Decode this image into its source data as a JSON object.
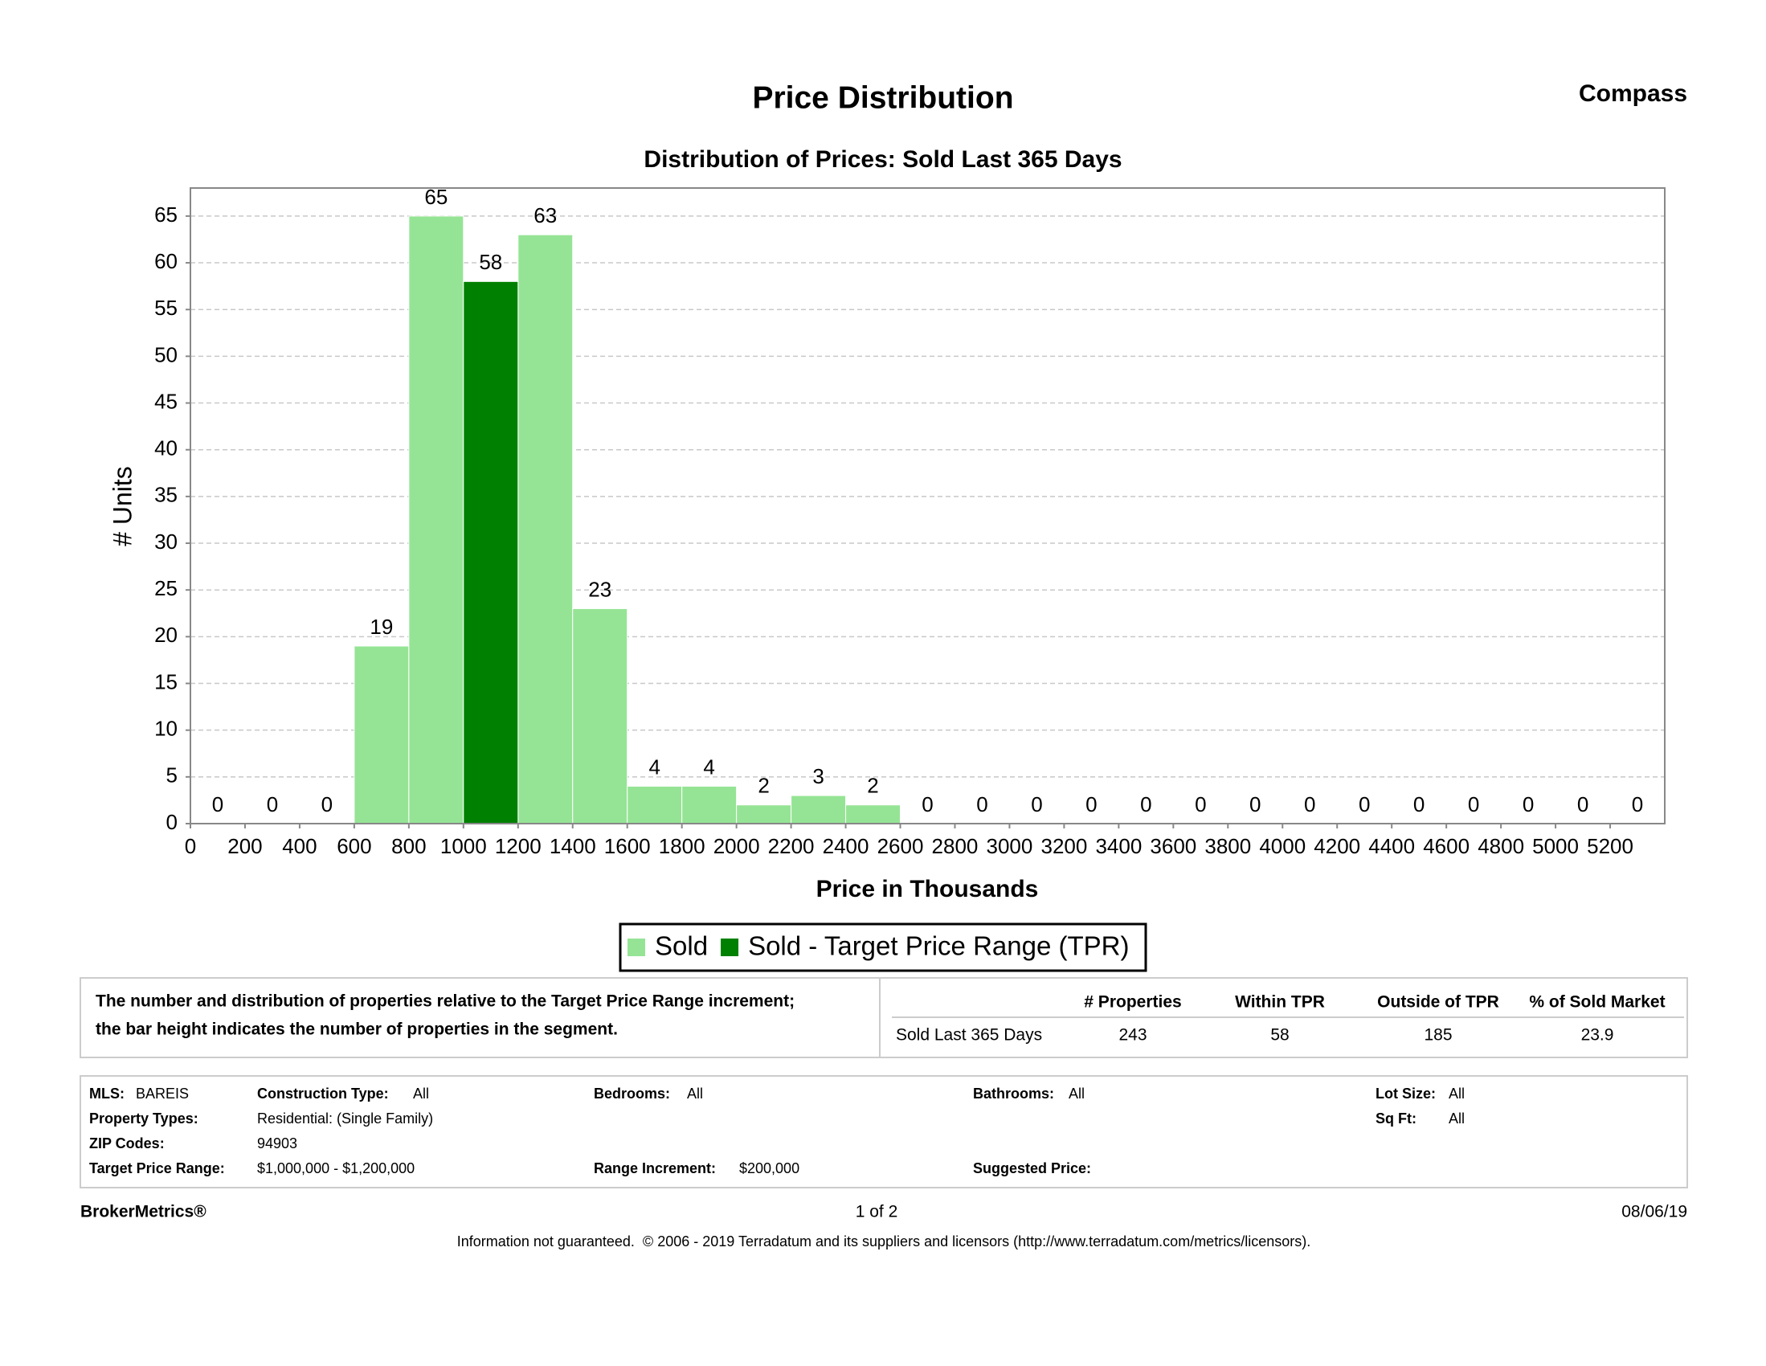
{
  "header": {
    "title": "Price Distribution",
    "brand": "Compass"
  },
  "chart_data": {
    "type": "histogram",
    "title": "Distribution of Prices: Sold Last 365 Days",
    "x_label": "Price in Thousands",
    "y_label": "# Units",
    "bins": [
      0,
      200,
      400,
      600,
      800,
      1000,
      1200,
      1400,
      1600,
      1800,
      2000,
      2200,
      2400,
      2600,
      2800,
      3000,
      3200,
      3400,
      3600,
      3800,
      4000,
      4200,
      4400,
      4600,
      4800,
      5000,
      5200,
      5400
    ],
    "series": [
      {
        "name": "Sold",
        "color": "#95e495",
        "values": [
          0,
          0,
          0,
          19,
          65,
          null,
          63,
          23,
          4,
          4,
          2,
          3,
          2,
          0,
          0,
          0,
          0,
          0,
          0,
          0,
          0,
          0,
          0,
          0,
          0,
          0,
          0
        ]
      },
      {
        "name": "Sold - Target Price Range (TPR)",
        "color": "#008000",
        "values": [
          null,
          null,
          null,
          null,
          null,
          58,
          null,
          null,
          null,
          null,
          null,
          null,
          null,
          null,
          null,
          null,
          null,
          null,
          null,
          null,
          null,
          null,
          null,
          null,
          null,
          null,
          null
        ]
      }
    ],
    "xlim": [
      0,
      5400
    ],
    "xticks": [
      0,
      200,
      400,
      600,
      800,
      1000,
      1200,
      1400,
      1600,
      1800,
      2000,
      2200,
      2400,
      2600,
      2800,
      3000,
      3200,
      3400,
      3600,
      3800,
      4000,
      4200,
      4400,
      4600,
      4800,
      5000,
      5200
    ],
    "ylim": [
      0,
      68
    ],
    "yticks": [
      0,
      5,
      10,
      15,
      20,
      25,
      30,
      35,
      40,
      45,
      50,
      55,
      60,
      65
    ],
    "grid": true,
    "legend": "bottom"
  },
  "summary": {
    "description": [
      "The number and distribution of properties relative to the Target Price Range increment;",
      "the bar height indicates the number of properties in the segment."
    ],
    "columns": [
      "# Properties",
      "Within TPR",
      "Outside of TPR",
      "% of Sold Market"
    ],
    "rows": [
      {
        "label": "Sold Last 365 Days",
        "values": [
          243,
          58,
          185,
          23.9
        ]
      }
    ]
  },
  "criteria": {
    "mls": {
      "label": "MLS:",
      "value": "BAREIS"
    },
    "construction_type": {
      "label": "Construction Type:",
      "value": "All"
    },
    "bedrooms": {
      "label": "Bedrooms:",
      "value": "All"
    },
    "bathrooms": {
      "label": "Bathrooms:",
      "value": "All"
    },
    "lot_size": {
      "label": "Lot Size:",
      "value": "All"
    },
    "property_types": {
      "label": "Property Types:",
      "value": "Residential: (Single Family)"
    },
    "sq_ft": {
      "label": "Sq Ft:",
      "value": "All"
    },
    "zip_codes": {
      "label": "ZIP Codes:",
      "value": "94903"
    },
    "target_price_range": {
      "label": "Target Price Range:",
      "value": "$1,000,000 - $1,200,000"
    },
    "range_increment": {
      "label": "Range Increment:",
      "value": "$200,000"
    },
    "suggested_price": {
      "label": "Suggested Price:"
    }
  },
  "footer": {
    "left": "BrokerMetrics®",
    "center": "1 of 2",
    "right": "08/06/19",
    "notice": "Information not guaranteed.  © 2006 - 2019 Terradatum and its suppliers and licensors (http://www.terradatum.com/metrics/licensors)."
  }
}
